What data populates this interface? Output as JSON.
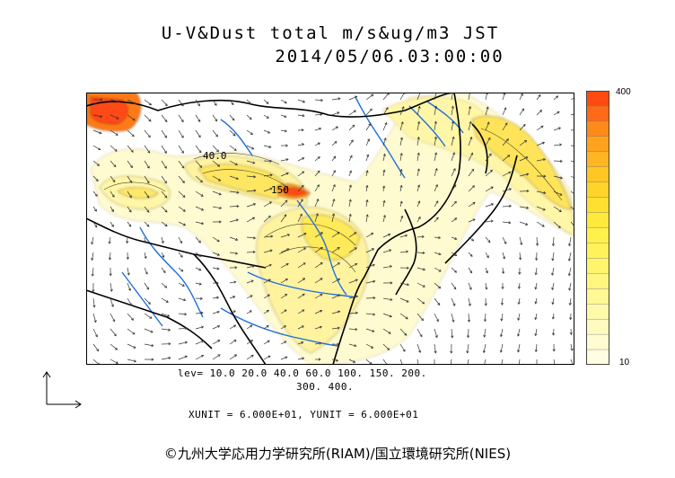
{
  "title": {
    "line1": "U-V&Dust total m/s&ug/m3 JST",
    "line2": "2014/05/06.03:00:00"
  },
  "map": {
    "contour_labels": [
      "40.0",
      "150"
    ],
    "colors": {
      "ocean": "#ffffff",
      "dust_low": "#fffbd0",
      "dust_mid": "#fff27a",
      "dust_high": "#ffd21a",
      "dust_peak_orange": "#ff8c1a",
      "dust_peak_red": "#ff4a12",
      "rivers": "#1f6fe0",
      "coast": "#000000",
      "wind_vectors": "#333333"
    }
  },
  "colorbar": {
    "max_label": "400",
    "min_label": "10",
    "colors": [
      "#ff4a12",
      "#ff6a16",
      "#ff8a1c",
      "#ffa31f",
      "#ffb622",
      "#ffc624",
      "#ffd42a",
      "#ffe030",
      "#ffe93c",
      "#fff04a",
      "#fff25a",
      "#fff46c",
      "#fff680",
      "#fff894",
      "#fffaaa",
      "#fffbc0",
      "#fffcd2",
      "#fffde2"
    ]
  },
  "levels": {
    "line1": "lev= 10.0 20.0 40.0 60.0 100. 150. 200.",
    "line2": "300. 400."
  },
  "units": {
    "text": "XUNIT = 6.000E+01, YUNIT = 6.000E+01"
  },
  "credit": "©九州大学応用力学研究所(RIAM)/国立環境研究所(NIES)"
}
